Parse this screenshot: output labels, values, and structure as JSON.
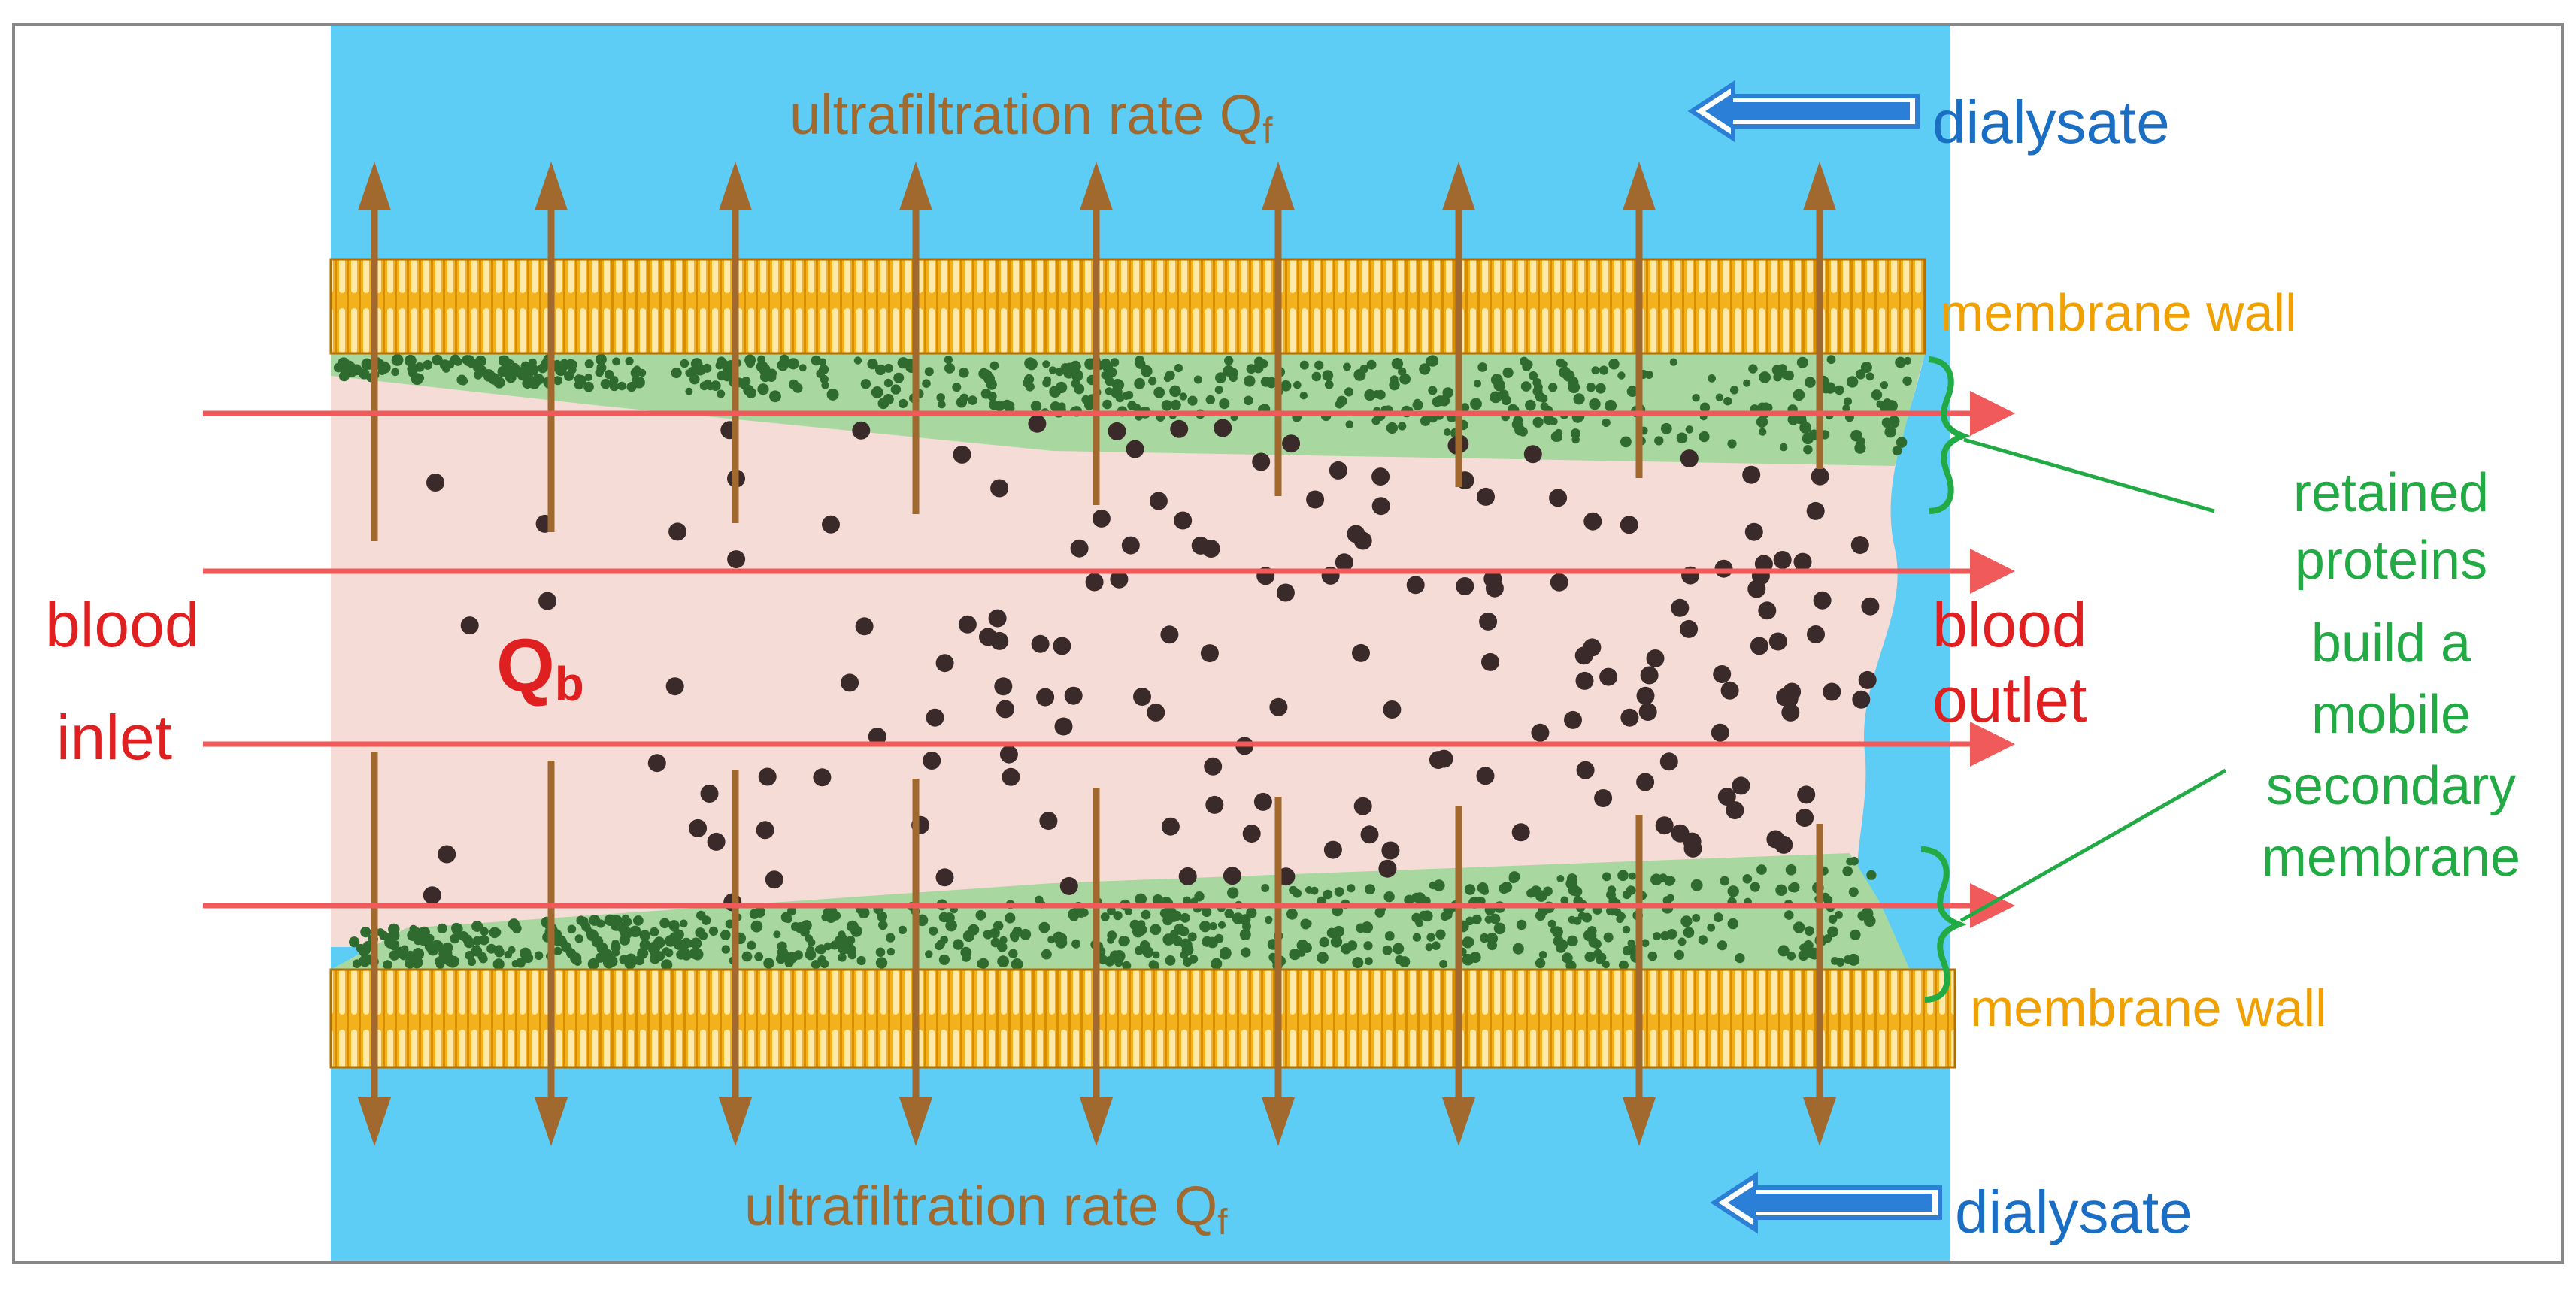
{
  "labels": {
    "uf_top": "ultrafiltration rate Q",
    "uf_top_sub": "f",
    "uf_bottom": "ultrafiltration rate Q",
    "uf_bottom_sub": "f",
    "dialysate_top": "dialysate",
    "dialysate_bottom": "dialysate",
    "membrane_wall_top": "membrane wall",
    "membrane_wall_bottom": "membrane wall",
    "blood_inlet_1": "blood",
    "blood_inlet_2": "inlet",
    "qb_main": "Q",
    "qb_sub": "b",
    "blood_outlet_1": "blood",
    "blood_outlet_2": "outlet",
    "retained_lines": [
      "retained",
      "proteins",
      "build a",
      "mobile",
      "secondary",
      "membrane"
    ]
  },
  "colors": {
    "dialysate_blue": "#5ecdf5",
    "blood_pink": "#f5dcd6",
    "membrane_orange": "#f3b11c",
    "membrane_stripe": "#ffe9a8",
    "protein_layer": "#a8d8a0",
    "protein_dot": "#2f6a2f",
    "particle": "#3a2a2a",
    "flow_arrow": "#f05a5a",
    "uf_arrow": "#a1692e",
    "label_red": "#e02020",
    "label_brown": "#a1692e",
    "label_blue": "#1a6fc4",
    "label_orange": "#f0a000",
    "label_green": "#22aa44",
    "arrow_blue": "#2b7fd6"
  }
}
